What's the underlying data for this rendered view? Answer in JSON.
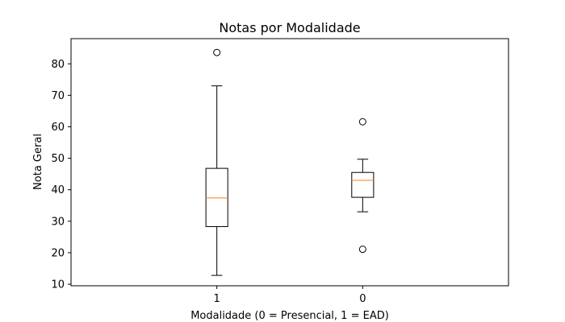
{
  "chart_data": {
    "type": "boxplot",
    "title": "Notas por Modalidade",
    "xlabel": "Modalidade (0 = Presencial, 1 = EAD)",
    "ylabel": "Nota Geral",
    "categories": [
      "1",
      "0"
    ],
    "ylim": [
      9.5,
      88
    ],
    "yticks": [
      10,
      20,
      30,
      40,
      50,
      60,
      70,
      80
    ],
    "grid": false,
    "boxes": [
      {
        "category": "1",
        "whisker_low": 12.8,
        "q1": 28.3,
        "median": 37.4,
        "q3": 46.8,
        "whisker_high": 73.0,
        "outliers": [
          83.6
        ]
      },
      {
        "category": "0",
        "whisker_low": 33.0,
        "q1": 37.6,
        "median": 43.0,
        "q3": 45.5,
        "whisker_high": 49.7,
        "outliers": [
          61.6,
          21.1
        ]
      }
    ],
    "colors": {
      "box": "#000000",
      "median": "#ff7f0e",
      "outlier": "#000000"
    }
  }
}
